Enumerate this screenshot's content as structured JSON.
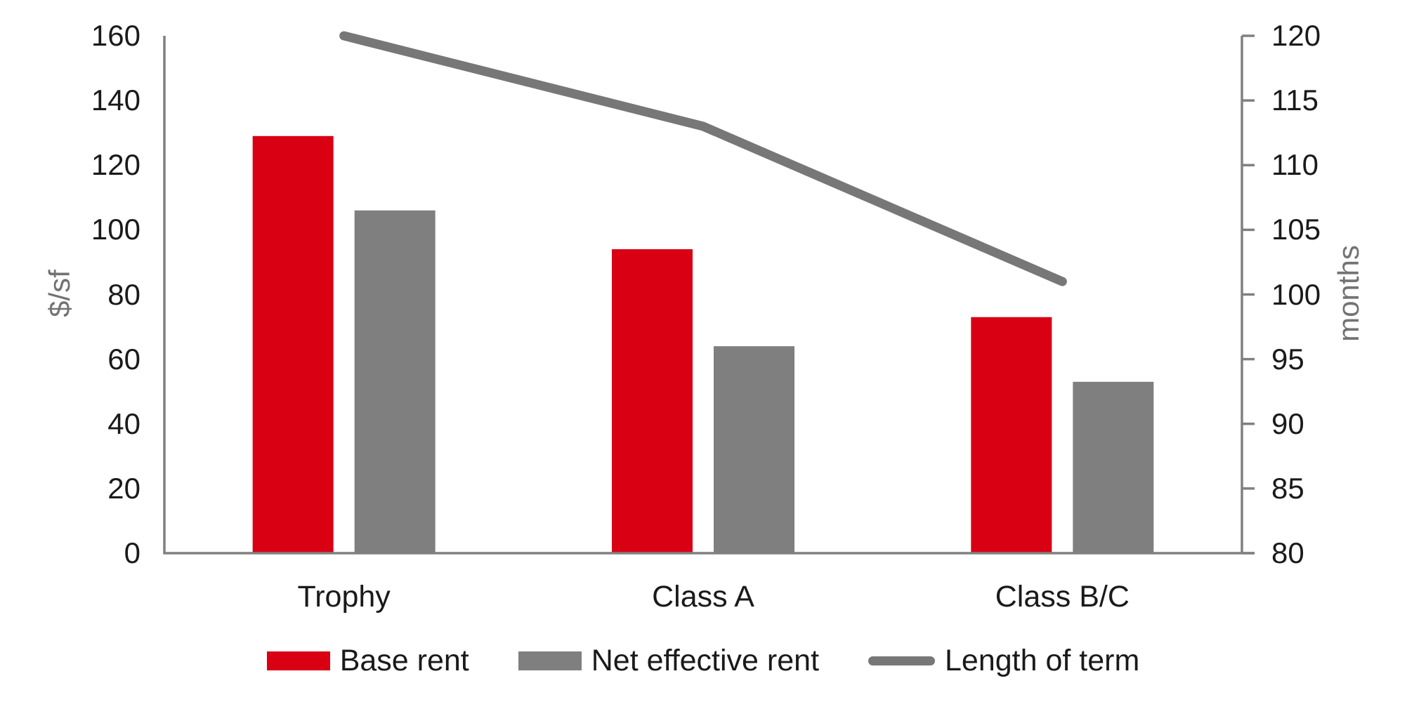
{
  "colors": {
    "base_rent": "#D90014",
    "net_effective_rent": "#7F7F7F",
    "length_of_term": "#777777",
    "axis_line": "#808080",
    "tick_label": "#1A1A1A",
    "axis_title": "#737373",
    "background": "#FFFFFF"
  },
  "chart_data": {
    "type": "combo: grouped bar + line on secondary axis",
    "categories": [
      "Trophy",
      "Class A",
      "Class B/C"
    ],
    "series": [
      {
        "name": "Base rent",
        "type": "bar",
        "axis": "left",
        "color_key": "base_rent",
        "values": [
          129,
          94,
          73
        ]
      },
      {
        "name": "Net effective rent",
        "type": "bar",
        "axis": "left",
        "color_key": "net_effective_rent",
        "values": [
          106,
          64,
          53
        ]
      },
      {
        "name": "Length of term",
        "type": "line",
        "axis": "right",
        "color_key": "length_of_term",
        "values": [
          120,
          113,
          101
        ]
      }
    ],
    "left_axis": {
      "title": "$/sf",
      "min": 0,
      "max": 160,
      "step": 20,
      "tick_labels_top_to_bottom": [
        "160",
        "140",
        "120",
        "100",
        "80",
        "60",
        "40",
        "20",
        "0"
      ]
    },
    "right_axis": {
      "title": "months",
      "min": 80,
      "max": 120,
      "step": 5,
      "tick_labels_top_to_bottom": [
        "120",
        "115",
        "110",
        "105",
        "100",
        "95",
        "90",
        "85",
        "80"
      ]
    },
    "grid": "off",
    "legend_position": "bottom"
  }
}
